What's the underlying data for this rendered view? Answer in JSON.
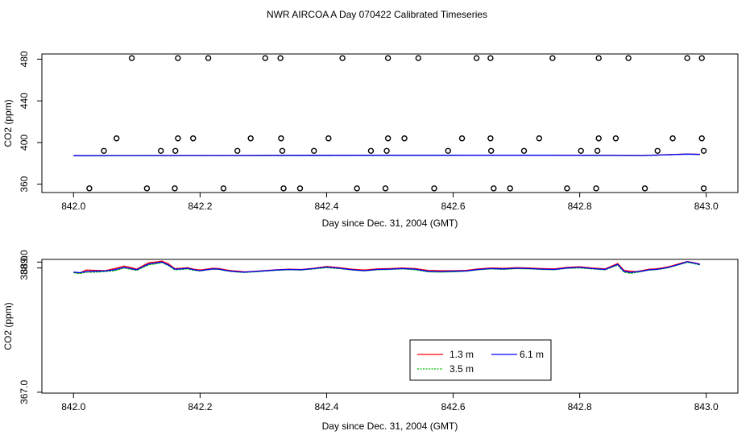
{
  "title": "NWR AIRCOA A  Day 070422  Calibrated Timeseries",
  "chart_data": [
    {
      "type": "scatter",
      "title": "",
      "xlabel": "Day since Dec. 31, 2004 (GMT)",
      "ylabel": "CO2 (ppm)",
      "xlim": [
        841.95,
        843.05
      ],
      "ylim": [
        352,
        485
      ],
      "x_ticks": [
        842.0,
        842.2,
        842.4,
        842.6,
        842.8,
        843.0
      ],
      "x_tick_labels": [
        "842.0",
        "842.2",
        "842.4",
        "842.6",
        "842.8",
        "843.0"
      ],
      "y_ticks": [
        360,
        400,
        440,
        480
      ],
      "y_tick_labels": [
        "360",
        "400",
        "440",
        "480"
      ],
      "grid": false,
      "points": {
        "name": "calibration standards",
        "marker": "open-circle",
        "x": [
          842.092,
          842.165,
          842.213,
          842.303,
          842.327,
          842.425,
          842.497,
          842.545,
          842.637,
          842.659,
          842.757,
          842.83,
          842.877,
          842.97,
          842.993,
          842.068,
          842.165,
          842.189,
          842.28,
          842.328,
          842.403,
          842.497,
          842.523,
          842.614,
          842.659,
          842.736,
          842.83,
          842.857,
          842.947,
          842.993,
          842.048,
          842.138,
          842.161,
          842.259,
          842.33,
          842.38,
          842.47,
          842.495,
          842.592,
          842.66,
          842.712,
          842.802,
          842.828,
          842.923,
          842.996,
          842.025,
          842.116,
          842.16,
          842.237,
          842.332,
          842.358,
          842.448,
          842.493,
          842.57,
          842.664,
          842.69,
          842.78,
          842.826,
          842.903,
          842.996
        ],
        "y": [
          481,
          481,
          481,
          481,
          481,
          481,
          481,
          481,
          481,
          481,
          481,
          481,
          481,
          481,
          481,
          404,
          404,
          404,
          404,
          404,
          404,
          404,
          404,
          404,
          404,
          404,
          404,
          404,
          404,
          404,
          392,
          392,
          392,
          392,
          392,
          392,
          392,
          392,
          392,
          392,
          392,
          392,
          392,
          392,
          392,
          356,
          356,
          356,
          356,
          356,
          356,
          356,
          356,
          356,
          356,
          356,
          356,
          356,
          356,
          356
        ]
      },
      "series": [
        {
          "name": "",
          "color": "#ff0000",
          "x": [
            842.0,
            842.25,
            842.5,
            842.75,
            842.9,
            842.97,
            842.99
          ],
          "y": [
            387.4,
            387.6,
            387.7,
            387.8,
            387.6,
            389.0,
            388.7
          ]
        },
        {
          "name": "",
          "color": "#00bb00",
          "x": [
            842.0,
            842.25,
            842.5,
            842.75,
            842.9,
            842.97,
            842.99
          ],
          "y": [
            387.2,
            387.5,
            387.6,
            387.7,
            387.5,
            388.8,
            388.5
          ]
        },
        {
          "name": "",
          "color": "#0000ff",
          "x": [
            842.0,
            842.25,
            842.5,
            842.75,
            842.9,
            842.97,
            842.99
          ],
          "y": [
            387.3,
            387.5,
            387.7,
            387.7,
            387.5,
            388.9,
            388.6
          ]
        }
      ]
    },
    {
      "type": "line",
      "title": "",
      "xlabel": "Day since Dec. 31, 2004 (GMT)",
      "ylabel": "CO2 (ppm)",
      "xlim": [
        841.95,
        843.05
      ],
      "ylim": [
        366.85,
        389.45
      ],
      "x_ticks": [
        842.0,
        842.2,
        842.4,
        842.6,
        842.8,
        843.0
      ],
      "x_tick_labels": [
        "842.0",
        "842.2",
        "842.4",
        "842.6",
        "842.8",
        "843.0"
      ],
      "y_ticks": [
        367.0,
        388.0,
        389.0
      ],
      "y_tick_labels": [
        "367.0",
        "388.0",
        "389.0"
      ],
      "grid": false,
      "legend": {
        "placement": "bottom-center",
        "entries": [
          {
            "label": "1.3 m",
            "color": "#ff0000"
          },
          {
            "label": "3.5 m",
            "color": "#00bb00"
          },
          {
            "label": "6.1 m",
            "color": "#0000ff"
          }
        ]
      },
      "series": [
        {
          "name": "1.3 m",
          "color": "#ff0000",
          "x": [
            842.0,
            842.01,
            842.02,
            842.035,
            842.05,
            842.065,
            842.08,
            842.09,
            842.1,
            842.112,
            842.12,
            842.13,
            842.14,
            842.15,
            842.16,
            842.17,
            842.18,
            842.19,
            842.2,
            842.21,
            842.22,
            842.23,
            842.24,
            842.25,
            842.26,
            842.27,
            842.28,
            842.3,
            842.32,
            842.34,
            842.36,
            842.38,
            842.4,
            842.42,
            842.44,
            842.46,
            842.48,
            842.5,
            842.52,
            842.54,
            842.56,
            842.58,
            842.6,
            842.62,
            842.64,
            842.66,
            842.68,
            842.7,
            842.72,
            842.74,
            842.76,
            842.78,
            842.8,
            842.82,
            842.84,
            842.86,
            842.87,
            842.88,
            842.89,
            842.9,
            842.91,
            842.92,
            842.93,
            842.94,
            842.95,
            842.96,
            842.97,
            842.98,
            842.99
          ],
          "y": [
            387.25,
            387.15,
            387.65,
            387.6,
            387.55,
            387.9,
            388.3,
            388.1,
            387.8,
            388.5,
            388.9,
            389.0,
            389.15,
            388.7,
            387.9,
            387.95,
            388.05,
            387.8,
            387.65,
            387.8,
            387.95,
            387.9,
            387.7,
            387.55,
            387.45,
            387.35,
            387.4,
            387.55,
            387.7,
            387.8,
            387.75,
            387.95,
            388.25,
            388.05,
            387.8,
            387.65,
            387.85,
            387.9,
            388.0,
            387.9,
            387.6,
            387.55,
            387.55,
            387.6,
            387.85,
            388.0,
            387.95,
            388.05,
            388.0,
            387.9,
            387.85,
            388.1,
            388.2,
            388.0,
            387.85,
            388.75,
            387.6,
            387.45,
            387.4,
            387.6,
            387.8,
            387.85,
            388.0,
            388.2,
            388.5,
            388.8,
            389.1,
            388.9,
            388.65
          ]
        },
        {
          "name": "3.5 m",
          "color": "#00bb00",
          "x": [
            842.0,
            842.01,
            842.02,
            842.035,
            842.05,
            842.065,
            842.08,
            842.09,
            842.1,
            842.112,
            842.12,
            842.13,
            842.14,
            842.15,
            842.16,
            842.17,
            842.18,
            842.19,
            842.2,
            842.21,
            842.22,
            842.23,
            842.24,
            842.25,
            842.26,
            842.27,
            842.28,
            842.3,
            842.32,
            842.34,
            842.36,
            842.38,
            842.4,
            842.42,
            842.44,
            842.46,
            842.48,
            842.5,
            842.52,
            842.54,
            842.56,
            842.58,
            842.6,
            842.62,
            842.64,
            842.66,
            842.68,
            842.7,
            842.72,
            842.74,
            842.76,
            842.78,
            842.8,
            842.82,
            842.84,
            842.86,
            842.87,
            842.88,
            842.89,
            842.9,
            842.91,
            842.92,
            842.93,
            842.94,
            842.95,
            842.96,
            842.97,
            842.98,
            842.99
          ],
          "y": [
            387.2,
            387.05,
            387.3,
            387.3,
            387.4,
            387.55,
            388.0,
            387.8,
            387.6,
            388.2,
            388.55,
            388.7,
            388.9,
            388.4,
            387.7,
            387.75,
            387.85,
            387.6,
            387.5,
            387.65,
            387.8,
            387.75,
            387.55,
            387.4,
            387.3,
            387.25,
            387.3,
            387.45,
            387.6,
            387.7,
            387.65,
            387.85,
            388.05,
            387.9,
            387.65,
            387.5,
            387.7,
            387.75,
            387.85,
            387.7,
            387.35,
            387.3,
            387.35,
            387.45,
            387.7,
            387.85,
            387.75,
            387.9,
            387.85,
            387.75,
            387.7,
            387.95,
            388.0,
            387.85,
            387.7,
            388.5,
            387.3,
            387.1,
            387.25,
            387.45,
            387.65,
            387.7,
            387.85,
            388.05,
            388.35,
            388.65,
            388.95,
            388.75,
            388.5
          ]
        },
        {
          "name": "6.1 m",
          "color": "#0000ff",
          "x": [
            842.0,
            842.01,
            842.02,
            842.035,
            842.05,
            842.065,
            842.08,
            842.09,
            842.1,
            842.112,
            842.12,
            842.13,
            842.14,
            842.15,
            842.16,
            842.17,
            842.18,
            842.19,
            842.2,
            842.21,
            842.22,
            842.23,
            842.24,
            842.25,
            842.26,
            842.27,
            842.28,
            842.3,
            842.32,
            842.34,
            842.36,
            842.38,
            842.4,
            842.42,
            842.44,
            842.46,
            842.48,
            842.5,
            842.52,
            842.54,
            842.56,
            842.58,
            842.6,
            842.62,
            842.64,
            842.66,
            842.68,
            842.7,
            842.72,
            842.74,
            842.76,
            842.78,
            842.8,
            842.82,
            842.84,
            842.86,
            842.87,
            842.88,
            842.89,
            842.9,
            842.91,
            842.92,
            842.93,
            842.94,
            842.95,
            842.96,
            842.97,
            842.98,
            842.99
          ],
          "y": [
            387.3,
            387.2,
            387.4,
            387.45,
            387.5,
            387.7,
            388.1,
            387.9,
            387.7,
            388.35,
            388.7,
            388.85,
            389.0,
            388.5,
            387.8,
            387.85,
            387.95,
            387.7,
            387.55,
            387.7,
            387.85,
            387.8,
            387.6,
            387.45,
            387.35,
            387.3,
            387.35,
            387.5,
            387.65,
            387.75,
            387.7,
            387.9,
            388.15,
            387.95,
            387.7,
            387.55,
            387.75,
            387.8,
            387.9,
            387.8,
            387.45,
            387.4,
            387.45,
            387.5,
            387.75,
            387.9,
            387.85,
            387.95,
            387.9,
            387.8,
            387.75,
            388.0,
            388.1,
            387.9,
            387.75,
            388.6,
            387.45,
            387.25,
            387.35,
            387.5,
            387.7,
            387.75,
            387.9,
            388.1,
            388.4,
            388.7,
            389.05,
            388.85,
            388.6
          ]
        }
      ]
    }
  ]
}
